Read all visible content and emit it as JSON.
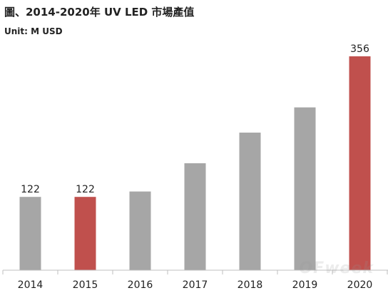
{
  "chart_data": {
    "type": "bar",
    "title": "圖、2014-2020年 UV LED 市場產值",
    "unit_label": "Unit: M USD",
    "categories": [
      "2014",
      "2015",
      "2016",
      "2017",
      "2018",
      "2019",
      "2020"
    ],
    "values": [
      122,
      122,
      131,
      178,
      229,
      271,
      356
    ],
    "value_labels": [
      "122",
      "122",
      "",
      "",
      "",
      "",
      "356"
    ],
    "bar_colors": [
      "#a6a6a6",
      "#c0504d",
      "#a6a6a6",
      "#a6a6a6",
      "#a6a6a6",
      "#a6a6a6",
      "#c0504d"
    ],
    "ylim": [
      0,
      356
    ],
    "grid": false,
    "legend": "none"
  },
  "watermark": "OFweek"
}
